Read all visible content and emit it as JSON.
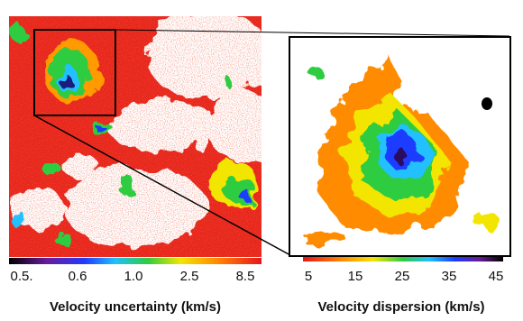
{
  "left_panel": {
    "colorbar_ticks": [
      "0.5.",
      "0.6",
      "1.0",
      "2.5",
      "8.5"
    ],
    "colorbar_label": "Velocity uncertainty (km/s)"
  },
  "right_panel": {
    "colorbar_ticks": [
      "5",
      "15",
      "25",
      "35",
      "45"
    ],
    "colorbar_label": "Velocity dispersion (km/s)"
  }
}
